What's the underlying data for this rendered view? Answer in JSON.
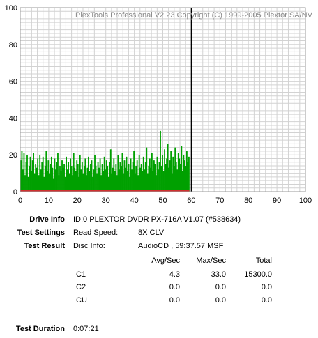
{
  "chart_data": {
    "type": "bar",
    "watermark": "PlexTools Professional V2.23 Copyright (C) 1999-2005 Plextor SA/NV",
    "xlim": [
      0,
      100
    ],
    "ylim": [
      0,
      100
    ],
    "x_ticks": [
      0,
      10,
      20,
      30,
      40,
      50,
      60,
      70,
      80,
      90,
      100
    ],
    "y_ticks": [
      0,
      20,
      40,
      60,
      80,
      100
    ],
    "grid": true,
    "series": [
      {
        "x_end": 59.3,
        "values": [
          17,
          22,
          12,
          21,
          9,
          16,
          20,
          8,
          14,
          19,
          11,
          17,
          21,
          10,
          15,
          13,
          18,
          9,
          20,
          12,
          16,
          19,
          8,
          14,
          22,
          11,
          17,
          10,
          15,
          19,
          13,
          7,
          18,
          12,
          16,
          21,
          9,
          14,
          11,
          17,
          13,
          15,
          8,
          19,
          12,
          16,
          10,
          18,
          14,
          9,
          21,
          13,
          11,
          17,
          15,
          8,
          20,
          12,
          16,
          10,
          14,
          18,
          9,
          13,
          19,
          11,
          15,
          17,
          8,
          12,
          20,
          14,
          10,
          16,
          13,
          18,
          9,
          15,
          11,
          19,
          12,
          17,
          14,
          8,
          16,
          23,
          10,
          13,
          18,
          11,
          15,
          9,
          20,
          12,
          16,
          14,
          21,
          10,
          17,
          13,
          19,
          11,
          15,
          8,
          18,
          12,
          16,
          22,
          10,
          14,
          17,
          9,
          20,
          13,
          15,
          11,
          19,
          12,
          16,
          24,
          10,
          14,
          18,
          13,
          21,
          11,
          17,
          15,
          9,
          19,
          12,
          16,
          33,
          14,
          20,
          11,
          23,
          15,
          18,
          26,
          13,
          17,
          22,
          10,
          19,
          14,
          24,
          16,
          12,
          21,
          18,
          15,
          25,
          11,
          20,
          17,
          14,
          22,
          16,
          19
        ]
      }
    ],
    "color": "#00a000",
    "marker_x": 60
  },
  "info": {
    "drive_info_label": "Drive Info",
    "drive_info_value": "ID:0 PLEXTOR DVDR PX-716A V1.07 (#538634)",
    "test_settings_label": "Test Settings",
    "read_speed_label": "Read Speed:",
    "read_speed_value": "8X CLV",
    "test_result_label": "Test Result",
    "disc_info_label": "Disc Info:",
    "disc_info_value": "AudioCD , 59:37.57 MSF",
    "col_avg": "Avg/Sec",
    "col_max": "Max/Sec",
    "col_total": "Total",
    "rows": [
      {
        "name": "C1",
        "avg": "4.3",
        "max": "33.0",
        "total": "15300.0"
      },
      {
        "name": "C2",
        "avg": "0.0",
        "max": "0.0",
        "total": "0.0"
      },
      {
        "name": "CU",
        "avg": "0.0",
        "max": "0.0",
        "total": "0.0"
      }
    ],
    "test_duration_label": "Test Duration",
    "test_duration_value": "0:07:21"
  }
}
